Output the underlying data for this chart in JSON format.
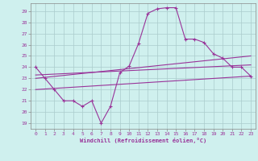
{
  "xlabel": "Windchill (Refroidissement éolien,°C)",
  "background_color": "#cff0ee",
  "grid_color": "#aacccc",
  "line_color": "#993399",
  "x_ticks": [
    0,
    1,
    2,
    3,
    4,
    5,
    6,
    7,
    8,
    9,
    10,
    11,
    12,
    13,
    14,
    15,
    16,
    17,
    18,
    19,
    20,
    21,
    22,
    23
  ],
  "y_ticks": [
    19,
    20,
    21,
    22,
    23,
    24,
    25,
    26,
    27,
    28,
    29
  ],
  "ylim": [
    18.5,
    29.7
  ],
  "xlim": [
    -0.5,
    23.5
  ],
  "main_line": {
    "x": [
      0,
      1,
      2,
      3,
      4,
      5,
      6,
      7,
      8,
      9,
      10,
      11,
      12,
      13,
      14,
      15,
      16,
      17,
      18,
      19,
      20,
      21,
      22,
      23
    ],
    "y": [
      24.0,
      23.0,
      22.0,
      21.0,
      21.0,
      20.5,
      21.0,
      19.0,
      20.5,
      23.5,
      24.1,
      26.1,
      28.8,
      29.2,
      29.3,
      29.3,
      26.5,
      26.5,
      26.2,
      25.2,
      24.8,
      24.0,
      24.0,
      23.2
    ]
  },
  "line2": {
    "x": [
      0,
      23
    ],
    "y": [
      23.0,
      25.0
    ]
  },
  "line3": {
    "x": [
      0,
      23
    ],
    "y": [
      23.3,
      24.2
    ]
  },
  "line4": {
    "x": [
      0,
      23
    ],
    "y": [
      22.0,
      23.2
    ]
  }
}
